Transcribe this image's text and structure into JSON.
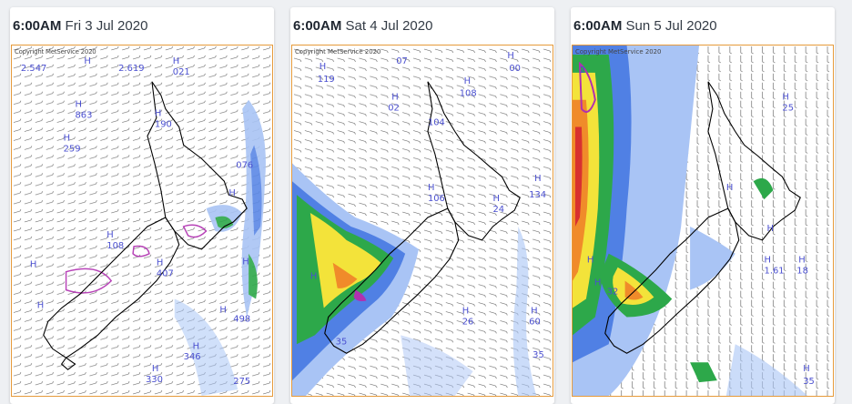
{
  "cards": [
    {
      "time": "6:00AM",
      "date": "Fri 3 Jul 2020",
      "copyright": "Copyright MetService 2020",
      "labels": [
        {
          "t": "H"
        },
        {
          "t": "2.547"
        },
        {
          "t": "2.619"
        },
        {
          "t": "H"
        },
        {
          "t": "021"
        },
        {
          "t": "H"
        },
        {
          "t": "863"
        },
        {
          "t": "H"
        },
        {
          "t": "190"
        },
        {
          "t": "H"
        },
        {
          "t": "259"
        },
        {
          "t": "076"
        },
        {
          "t": "H"
        },
        {
          "t": "H"
        },
        {
          "t": "108"
        },
        {
          "t": "H"
        },
        {
          "t": "407"
        },
        {
          "t": "H"
        },
        {
          "t": "H"
        },
        {
          "t": "H"
        },
        {
          "t": "H"
        },
        {
          "t": "498"
        },
        {
          "t": "H"
        },
        {
          "t": "346"
        },
        {
          "t": "H"
        },
        {
          "t": "330"
        },
        {
          "t": "275"
        }
      ]
    },
    {
      "time": "6:00AM",
      "date": "Sat 4 Jul 2020",
      "copyright": "Copyright MetService 2020",
      "labels": [
        {
          "t": "07"
        },
        {
          "t": "H"
        },
        {
          "t": "00"
        },
        {
          "t": "H"
        },
        {
          "t": "119"
        },
        {
          "t": "H"
        },
        {
          "t": "108"
        },
        {
          "t": "H"
        },
        {
          "t": "02"
        },
        {
          "t": "104"
        },
        {
          "t": "H"
        },
        {
          "t": "106"
        },
        {
          "t": "H"
        },
        {
          "t": "134"
        },
        {
          "t": "H"
        },
        {
          "t": "24"
        },
        {
          "t": "H"
        },
        {
          "t": "H"
        },
        {
          "t": "26"
        },
        {
          "t": "H"
        },
        {
          "t": "60"
        },
        {
          "t": "35"
        },
        {
          "t": "35"
        }
      ]
    },
    {
      "time": "6:00AM",
      "date": "Sun 5 Jul 2020",
      "copyright": "Copyright MetService 2020",
      "labels": [
        {
          "t": "H"
        },
        {
          "t": "25"
        },
        {
          "t": "H"
        },
        {
          "t": "H"
        },
        {
          "t": "H"
        },
        {
          "t": "1.61"
        },
        {
          "t": "H"
        },
        {
          "t": "18"
        },
        {
          "t": "H"
        },
        {
          "t": "2"
        },
        {
          "t": "H"
        },
        {
          "t": "32"
        },
        {
          "t": "H"
        },
        {
          "t": "35"
        }
      ]
    }
  ],
  "colors": {
    "frame": "#e69a3a",
    "coast": "#000000",
    "label": "#4a4fd0",
    "rain_light": "#a9c4f5",
    "rain_blue": "#3a6fe0",
    "rain_green": "#2da84a",
    "rain_yellow": "#f3e33a",
    "rain_orange": "#f08b2a",
    "rain_red": "#d83030",
    "rain_magenta": "#b030b0"
  }
}
